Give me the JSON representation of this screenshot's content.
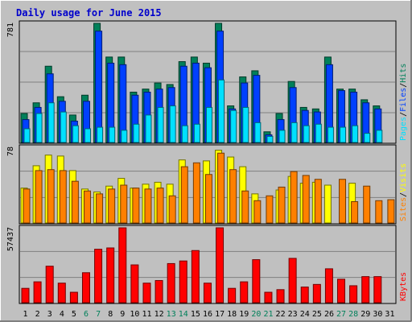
{
  "title": "Daily usage for June 2015",
  "colors": {
    "background": "#c0c0c0",
    "title": "#0000cc",
    "hits": "#00805a",
    "files": "#0040ff",
    "pages": "#00e0ff",
    "visits": "#ffff00",
    "sites": "#ff8000",
    "kbytes": "#ff0000",
    "weekend_day": "#00805a",
    "grid": "#808080"
  },
  "chart_data": {
    "type": "bar",
    "days": [
      "1",
      "2",
      "3",
      "4",
      "5",
      "6",
      "7",
      "8",
      "9",
      "10",
      "11",
      "12",
      "13",
      "14",
      "15",
      "16",
      "17",
      "18",
      "19",
      "20",
      "21",
      "22",
      "23",
      "24",
      "25",
      "26",
      "27",
      "28",
      "29",
      "30",
      "31"
    ],
    "weekend_days": [
      "6",
      "7",
      "13",
      "14",
      "20",
      "21",
      "27",
      "28"
    ],
    "panels": [
      {
        "key": "hits_files_pages",
        "max_label": "781",
        "ymax": 781,
        "legend": [
          {
            "label": "Pages",
            "color": "#00e0ff"
          },
          {
            "label": "Files",
            "color": "#0040ff"
          },
          {
            "label": "Hits",
            "color": "#00805a"
          }
        ],
        "series": [
          {
            "name": "Hits",
            "values": [
              190,
              260,
              500,
              300,
              180,
              310,
              781,
              560,
              560,
              330,
              350,
              390,
              380,
              530,
              560,
              520,
              781,
              240,
              430,
              470,
              70,
              190,
              400,
              230,
              220,
              560,
              350,
              350,
              280,
              240,
              0
            ]
          },
          {
            "name": "Files",
            "values": [
              150,
              230,
              450,
              270,
              140,
              270,
              730,
              520,
              510,
              310,
              330,
              350,
              360,
              500,
              520,
              490,
              730,
              220,
              390,
              440,
              50,
              150,
              360,
              210,
              200,
              510,
              340,
              330,
              260,
              220,
              0
            ]
          },
          {
            "name": "Pages",
            "values": [
              90,
              190,
              260,
              200,
              110,
              90,
              100,
              100,
              80,
              120,
              180,
              230,
              240,
              110,
              120,
              230,
              410,
              210,
              230,
              130,
              40,
              80,
              130,
              110,
              120,
              100,
              100,
              110,
              60,
              80,
              0
            ]
          }
        ]
      },
      {
        "key": "visits_sites",
        "max_label": "78",
        "ymax": 78,
        "legend": [
          {
            "label": "Sites",
            "color": "#ff8000"
          },
          {
            "label": "Visits",
            "color": "#ffff00"
          }
        ],
        "series": [
          {
            "name": "Visits",
            "values": [
              36,
              59,
              70,
              69,
              54,
              35,
              32,
              38,
              46,
              36,
              40,
              42,
              40,
              65,
              0,
              64,
              75,
              68,
              58,
              30,
              0,
              34,
              48,
              41,
              42,
              39,
              0,
              41,
              0,
              0,
              0
            ]
          },
          {
            "name": "Sites",
            "values": [
              35,
              54,
              55,
              54,
              43,
              33,
              30,
              35,
              39,
              36,
              35,
              36,
              28,
              58,
              62,
              50,
              72,
              55,
              33,
              23,
              28,
              37,
              53,
              49,
              45,
              0,
              45,
              22,
              38,
              23,
              24
            ]
          }
        ]
      },
      {
        "key": "kbytes",
        "max_label": "57437",
        "ymax": 57437,
        "legend": [
          {
            "label": "KBytes",
            "color": "#ff0000"
          }
        ],
        "series": [
          {
            "name": "KBytes",
            "values": [
              11000,
              16000,
              28000,
              15000,
              8000,
              23000,
              41000,
              42000,
              57437,
              29000,
              15000,
              17000,
              30000,
              32000,
              40000,
              15000,
              57437,
              11000,
              16000,
              33000,
              8000,
              10000,
              34000,
              12000,
              14000,
              26000,
              18000,
              13000,
              20000,
              20000,
              0
            ]
          }
        ]
      }
    ]
  }
}
